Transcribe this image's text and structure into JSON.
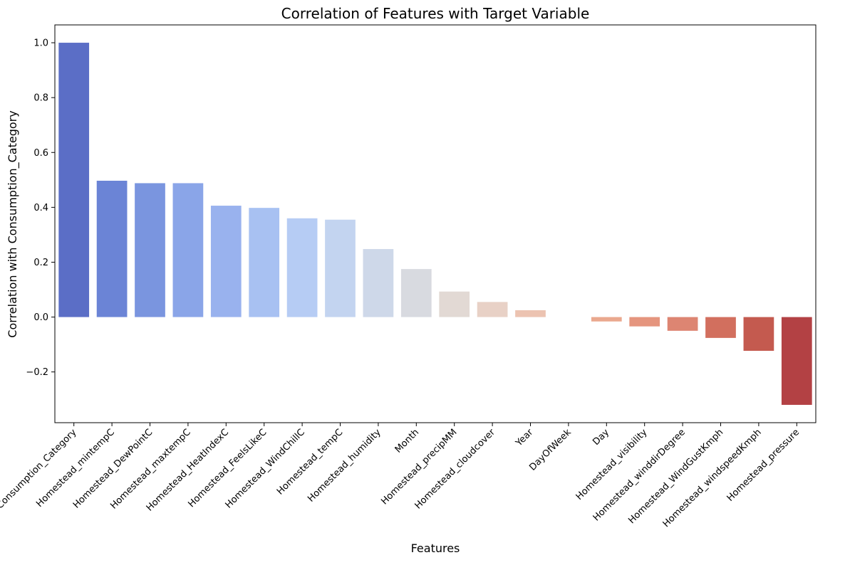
{
  "chart_data": {
    "type": "bar",
    "title": "Correlation of Features with Target Variable",
    "xlabel": "Features",
    "ylabel": "Correlation with Consumption_Category",
    "ylim": [
      -0.385,
      1.065
    ],
    "yticks": [
      -0.2,
      0.0,
      0.2,
      0.4,
      0.6,
      0.8,
      1.0
    ],
    "ytick_labels": [
      "−0.2",
      "0.0",
      "0.2",
      "0.4",
      "0.6",
      "0.8",
      "1.0"
    ],
    "grid": false,
    "categories": [
      "Consumption_Category",
      "Homestead_mintempC",
      "Homestead_DewPointC",
      "Homestead_maxtempC",
      "Homestead_HeatIndexC",
      "Homestead_FeelsLikeC",
      "Homestead_WindChillC",
      "Homestead_tempC",
      "Homestead_humidity",
      "Month",
      "Homestead_precipMM",
      "Homestead_cloudcover",
      "Year",
      "DayOfWeek",
      "Day",
      "Homestead_visibility",
      "Homestead_winddirDegree",
      "Homestead_WindGustKmph",
      "Homestead_windspeedKmph",
      "Homestead_pressure"
    ],
    "values": [
      1.0,
      0.497,
      0.488,
      0.488,
      0.406,
      0.398,
      0.36,
      0.355,
      0.248,
      0.175,
      0.093,
      0.055,
      0.025,
      0.0,
      -0.016,
      -0.034,
      -0.05,
      -0.076,
      -0.123,
      -0.32
    ],
    "colors": [
      "#5b6ec6",
      "#6b84d6",
      "#7a95df",
      "#8aa5e8",
      "#99b2ee",
      "#a8c1f2",
      "#b6ccf4",
      "#c3d4f0",
      "#ced8e9",
      "#d8dae0",
      "#e2d9d4",
      "#e8d1c6",
      "#ecc3b1",
      "#f0b9a3",
      "#eaa88e",
      "#e5957e",
      "#dd8572",
      "#d26f5e",
      "#c45a4f",
      "#b34144"
    ]
  }
}
